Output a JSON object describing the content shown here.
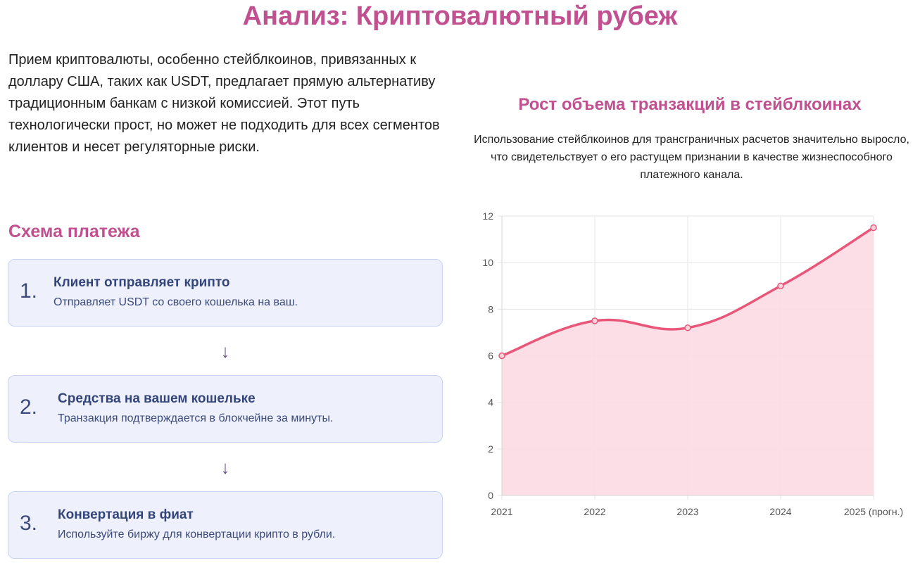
{
  "header": {
    "title": "Анализ: Криптовалютный рубеж"
  },
  "intro": {
    "text": "Прием криптовалюты, особенно стейблкоинов, привязанных к доллару США, таких как USDT, предлагает прямую альтернативу традиционным банкам с низкой комиссией. Этот путь технологически прост, но может не подходить для всех сегментов клиентов и несет регуляторные риски."
  },
  "scheme": {
    "title": "Схема платежа",
    "arrow_glyph": "↓",
    "steps": [
      {
        "num": "1.",
        "title": "Клиент отправляет крипто",
        "desc": "Отправляет USDT со своего кошелька на ваш."
      },
      {
        "num": "2.",
        "title": "Средства на вашем кошельке",
        "desc": "Транзакция подтверждается в блокчейне за минуты."
      },
      {
        "num": "3.",
        "title": "Конвертация в фиат",
        "desc": "Используйте биржу для конвертации крипто в рубли."
      }
    ]
  },
  "chart_section": {
    "title": "Рост объема транзакций в стейблкоинах",
    "desc": "Использование стейблкоинов для трансграничных расчетов значительно выросло, что свидетельствует о его растущем признании в качестве жизнеспособного платежного канала."
  },
  "colors": {
    "accent": "#c0508f",
    "line": "#e8577a",
    "fill": "#fcdce3",
    "step_bg": "#eef1fc",
    "step_border": "#c7d2f5",
    "step_text": "#33457a"
  },
  "chart_data": {
    "type": "area",
    "categories": [
      "2021",
      "2022",
      "2023",
      "2024",
      "2025 (прогн.)"
    ],
    "series": [
      {
        "values": [
          6,
          7.5,
          7.2,
          9,
          11.5
        ]
      }
    ],
    "ylim": [
      0,
      12
    ],
    "yticks": [
      0,
      2,
      4,
      6,
      8,
      10,
      12
    ],
    "grid": true,
    "legend": "none",
    "curve": "smooth"
  }
}
